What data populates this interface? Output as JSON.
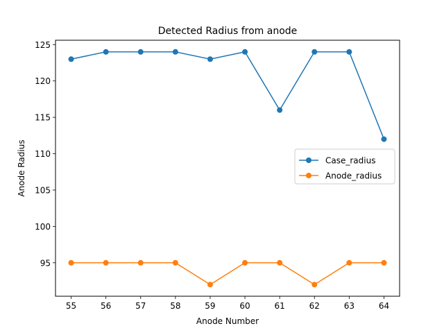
{
  "chart_data": {
    "type": "line",
    "title": "Detected Radius from anode",
    "xlabel": "Anode Number",
    "ylabel": "Anode Radius",
    "x": [
      55,
      56,
      57,
      58,
      59,
      60,
      61,
      62,
      63,
      64
    ],
    "xticks": [
      "55",
      "56",
      "57",
      "58",
      "59",
      "60",
      "61",
      "62",
      "63",
      "64"
    ],
    "yticks": [
      "95",
      "100",
      "105",
      "110",
      "115",
      "120",
      "125"
    ],
    "xlim": [
      54.55,
      64.45
    ],
    "ylim": [
      90.4,
      125.6
    ],
    "grid": false,
    "legend_position": "center-right",
    "series": [
      {
        "name": "Case_radius",
        "color": "#1f77b4",
        "values": [
          123,
          124,
          124,
          124,
          123,
          124,
          116,
          124,
          124,
          112
        ]
      },
      {
        "name": "Anode_radius",
        "color": "#ff7f0e",
        "values": [
          95,
          95,
          95,
          95,
          92,
          95,
          95,
          92,
          95,
          95
        ]
      }
    ]
  }
}
